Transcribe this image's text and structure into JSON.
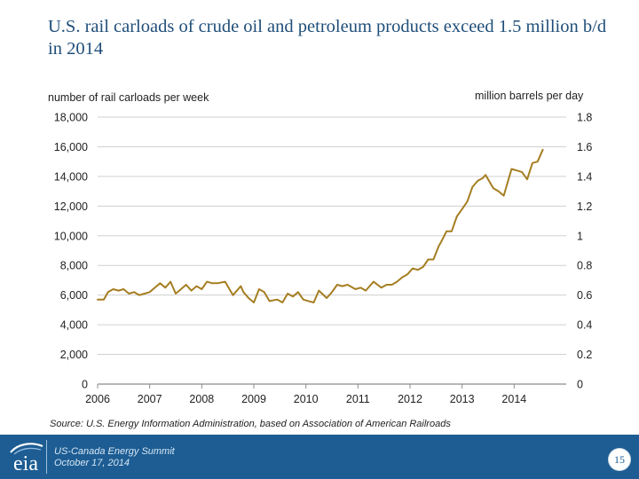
{
  "slide": {
    "title": "U.S. rail carloads of crude oil and petroleum products exceed 1.5 million b/d in 2014",
    "source": "Source: U.S. Energy Information Administration, based on Association of American Railroads",
    "footer_line1": "US-Canada Energy Summit",
    "footer_line2": "October 17, 2014",
    "logo_text": "eia",
    "page_number": "15"
  },
  "colors": {
    "line": "#a57e22",
    "grid": "#d0d0d0",
    "axis": "#8c8c8c",
    "title": "#1f4e79",
    "footer": "#1d5d93"
  },
  "chart_data": {
    "type": "line",
    "title": "U.S. rail carloads of crude oil and petroleum products exceed 1.5 million b/d in 2014",
    "ylabel": "number of rail carloads per week",
    "ylabel_right": "million barrels per day",
    "xlabel": "",
    "ylim": [
      0,
      18000
    ],
    "ylim_right": [
      0,
      1.8
    ],
    "xlim": [
      2006,
      2015
    ],
    "grid": true,
    "x_ticks": [
      "2006",
      "2007",
      "2008",
      "2009",
      "2010",
      "2011",
      "2012",
      "2013",
      "2014"
    ],
    "y_ticks": [
      "0",
      "2,000",
      "4,000",
      "6,000",
      "8,000",
      "10,000",
      "12,000",
      "14,000",
      "16,000",
      "18,000"
    ],
    "y_ticks_right": [
      "0",
      "0.2",
      "0.4",
      "0.6",
      "0.8",
      "1",
      "1.2",
      "1.4",
      "1.6",
      "1.8"
    ],
    "series": [
      {
        "name": "rail carloads per week",
        "x": [
          2006.0,
          2006.12,
          2006.2,
          2006.3,
          2006.4,
          2006.5,
          2006.6,
          2006.7,
          2006.8,
          2006.9,
          2007.0,
          2007.1,
          2007.2,
          2007.3,
          2007.4,
          2007.5,
          2007.6,
          2007.7,
          2007.8,
          2007.9,
          2008.0,
          2008.1,
          2008.2,
          2008.3,
          2008.45,
          2008.6,
          2008.75,
          2008.8,
          2008.9,
          2009.0,
          2009.1,
          2009.2,
          2009.3,
          2009.45,
          2009.55,
          2009.65,
          2009.75,
          2009.85,
          2009.95,
          2010.05,
          2010.15,
          2010.25,
          2010.4,
          2010.5,
          2010.6,
          2010.7,
          2010.8,
          2010.95,
          2011.05,
          2011.15,
          2011.3,
          2011.45,
          2011.55,
          2011.65,
          2011.75,
          2011.85,
          2011.95,
          2012.05,
          2012.15,
          2012.25,
          2012.35,
          2012.45,
          2012.55,
          2012.6,
          2012.7,
          2012.8,
          2012.9,
          2013.0,
          2013.1,
          2013.2,
          2013.3,
          2013.4,
          2013.45,
          2013.6,
          2013.7,
          2013.8,
          2013.95,
          2014.05,
          2014.15,
          2014.25,
          2014.35,
          2014.45,
          2014.55
        ],
        "values": [
          5700,
          5700,
          6200,
          6400,
          6300,
          6400,
          6100,
          6200,
          6000,
          6100,
          6200,
          6500,
          6800,
          6500,
          6900,
          6100,
          6400,
          6700,
          6300,
          6600,
          6400,
          6900,
          6800,
          6800,
          6900,
          6000,
          6600,
          6200,
          5800,
          5500,
          6400,
          6200,
          5600,
          5700,
          5500,
          6100,
          5900,
          6200,
          5700,
          5600,
          5500,
          6300,
          5800,
          6200,
          6700,
          6600,
          6700,
          6400,
          6500,
          6300,
          6900,
          6500,
          6700,
          6700,
          6900,
          7200,
          7400,
          7800,
          7700,
          7900,
          8400,
          8400,
          9300,
          9600,
          10300,
          10300,
          11300,
          11800,
          12300,
          13300,
          13700,
          13900,
          14100,
          13200,
          13000,
          12700,
          14500,
          14400,
          14300,
          13800,
          14900,
          15000,
          15800
        ]
      }
    ]
  }
}
